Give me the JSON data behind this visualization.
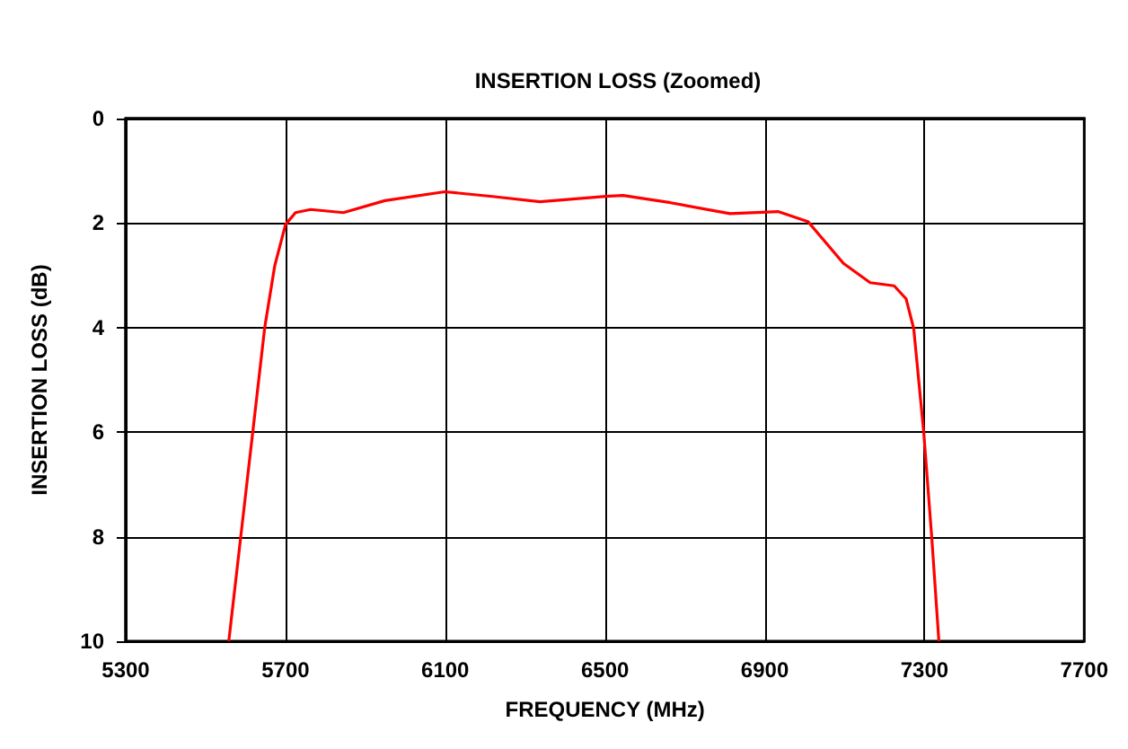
{
  "chart_data": {
    "type": "line",
    "title": "INSERTION LOSS (Zoomed)",
    "xlabel": "FREQUENCY (MHz)",
    "ylabel": "INSERTION LOSS (dB)",
    "x": [
      5558,
      5588,
      5618,
      5648,
      5673,
      5700,
      5725,
      5763,
      5845,
      5949,
      6099,
      6218,
      6337,
      6502,
      6545,
      6664,
      6813,
      6933,
      7008,
      7097,
      7164,
      7224,
      7254,
      7273,
      7298,
      7318,
      7336
    ],
    "series": [
      {
        "color": "#ff0000",
        "values": [
          10,
          8.0,
          6.0,
          4.0,
          2.82,
          2.03,
          1.8,
          1.74,
          1.8,
          1.57,
          1.4,
          1.49,
          1.59,
          1.49,
          1.47,
          1.61,
          1.82,
          1.78,
          1.97,
          2.77,
          3.14,
          3.2,
          3.45,
          4.02,
          6.0,
          8.0,
          10
        ]
      }
    ],
    "xlim": [
      5300,
      7700
    ],
    "xticks": [
      5300,
      5700,
      6100,
      6500,
      6900,
      7300,
      7700
    ],
    "ylim": [
      10,
      0
    ],
    "yticks": [
      0,
      2,
      4,
      6,
      8,
      10
    ],
    "grid": true,
    "marker": "none",
    "line_style": "solid"
  }
}
